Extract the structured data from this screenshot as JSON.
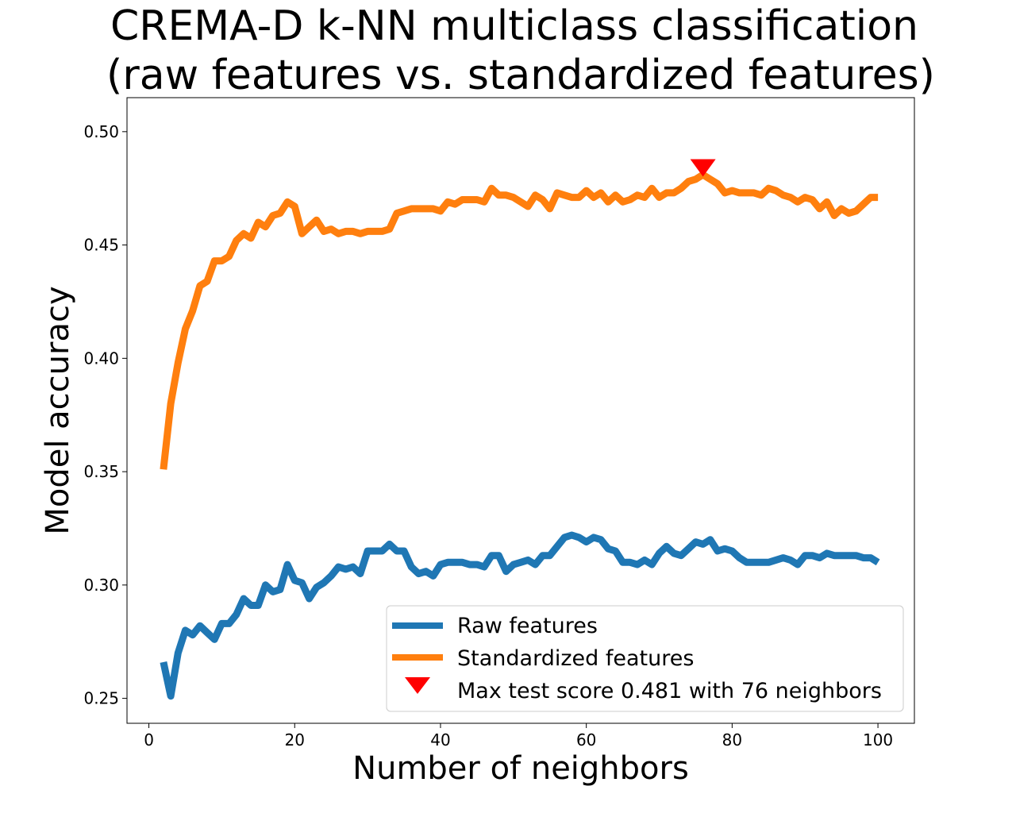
{
  "chart_data": {
    "type": "line",
    "title": "CREMA-D k-NN multiclass classification\n(raw features vs. standardized features)",
    "title_lines": [
      "CREMA-D k-NN multiclass classification",
      "(raw features vs. standardized features)"
    ],
    "xlabel": "Number of neighbors",
    "ylabel": "Model accuracy",
    "xlim": [
      -3,
      105
    ],
    "ylim": [
      0.239,
      0.515
    ],
    "xticks": [
      0,
      20,
      40,
      60,
      80,
      100
    ],
    "xtick_labels": [
      "0",
      "20",
      "40",
      "60",
      "80",
      "100"
    ],
    "yticks": [
      0.25,
      0.3,
      0.35,
      0.4,
      0.45,
      0.5
    ],
    "ytick_labels": [
      "0.25",
      "0.30",
      "0.35",
      "0.40",
      "0.45",
      "0.50"
    ],
    "grid": false,
    "legend_position": "lower-right",
    "series": [
      {
        "name": "Raw features",
        "color": "#1f77b4",
        "x": [
          2,
          3,
          4,
          5,
          6,
          7,
          8,
          9,
          10,
          11,
          12,
          13,
          14,
          15,
          16,
          17,
          18,
          19,
          20,
          21,
          22,
          23,
          24,
          25,
          26,
          27,
          28,
          29,
          30,
          31,
          32,
          33,
          34,
          35,
          36,
          37,
          38,
          39,
          40,
          41,
          42,
          43,
          44,
          45,
          46,
          47,
          48,
          49,
          50,
          51,
          52,
          53,
          54,
          55,
          56,
          57,
          58,
          59,
          60,
          61,
          62,
          63,
          64,
          65,
          66,
          67,
          68,
          69,
          70,
          71,
          72,
          73,
          74,
          75,
          76,
          77,
          78,
          79,
          80,
          81,
          82,
          83,
          84,
          85,
          86,
          87,
          88,
          89,
          90,
          91,
          92,
          93,
          94,
          95,
          96,
          97,
          98,
          99,
          100
        ],
        "y": [
          0.266,
          0.251,
          0.27,
          0.28,
          0.278,
          0.282,
          0.279,
          0.276,
          0.283,
          0.283,
          0.287,
          0.294,
          0.291,
          0.291,
          0.3,
          0.297,
          0.298,
          0.309,
          0.302,
          0.301,
          0.294,
          0.299,
          0.301,
          0.304,
          0.308,
          0.307,
          0.308,
          0.305,
          0.315,
          0.315,
          0.315,
          0.318,
          0.315,
          0.315,
          0.308,
          0.305,
          0.306,
          0.304,
          0.309,
          0.31,
          0.31,
          0.31,
          0.309,
          0.309,
          0.308,
          0.313,
          0.313,
          0.306,
          0.309,
          0.31,
          0.311,
          0.309,
          0.313,
          0.313,
          0.317,
          0.321,
          0.322,
          0.321,
          0.319,
          0.321,
          0.32,
          0.316,
          0.315,
          0.31,
          0.31,
          0.309,
          0.311,
          0.309,
          0.314,
          0.317,
          0.314,
          0.313,
          0.316,
          0.319,
          0.318,
          0.32,
          0.315,
          0.316,
          0.315,
          0.312,
          0.31,
          0.31,
          0.31,
          0.31,
          0.311,
          0.312,
          0.311,
          0.309,
          0.313,
          0.313,
          0.312,
          0.314,
          0.313,
          0.313,
          0.313,
          0.313,
          0.312,
          0.312,
          0.31
        ]
      },
      {
        "name": "Standardized features",
        "color": "#ff7f0e",
        "x": [
          2,
          3,
          4,
          5,
          6,
          7,
          8,
          9,
          10,
          11,
          12,
          13,
          14,
          15,
          16,
          17,
          18,
          19,
          20,
          21,
          22,
          23,
          24,
          25,
          26,
          27,
          28,
          29,
          30,
          31,
          32,
          33,
          34,
          35,
          36,
          37,
          38,
          39,
          40,
          41,
          42,
          43,
          44,
          45,
          46,
          47,
          48,
          49,
          50,
          51,
          52,
          53,
          54,
          55,
          56,
          57,
          58,
          59,
          60,
          61,
          62,
          63,
          64,
          65,
          66,
          67,
          68,
          69,
          70,
          71,
          72,
          73,
          74,
          75,
          76,
          77,
          78,
          79,
          80,
          81,
          82,
          83,
          84,
          85,
          86,
          87,
          88,
          89,
          90,
          91,
          92,
          93,
          94,
          95,
          96,
          97,
          98,
          99,
          100
        ],
        "y": [
          0.351,
          0.38,
          0.398,
          0.413,
          0.421,
          0.432,
          0.434,
          0.443,
          0.443,
          0.445,
          0.452,
          0.455,
          0.453,
          0.46,
          0.458,
          0.463,
          0.464,
          0.469,
          0.467,
          0.455,
          0.458,
          0.461,
          0.456,
          0.457,
          0.455,
          0.456,
          0.456,
          0.455,
          0.456,
          0.456,
          0.456,
          0.457,
          0.464,
          0.465,
          0.466,
          0.466,
          0.466,
          0.466,
          0.465,
          0.469,
          0.468,
          0.47,
          0.47,
          0.47,
          0.469,
          0.475,
          0.472,
          0.472,
          0.471,
          0.469,
          0.467,
          0.472,
          0.47,
          0.466,
          0.473,
          0.472,
          0.471,
          0.471,
          0.474,
          0.471,
          0.473,
          0.469,
          0.472,
          0.469,
          0.47,
          0.472,
          0.471,
          0.475,
          0.471,
          0.473,
          0.473,
          0.475,
          0.478,
          0.479,
          0.481,
          0.479,
          0.477,
          0.473,
          0.474,
          0.473,
          0.473,
          0.473,
          0.472,
          0.475,
          0.474,
          0.472,
          0.471,
          0.469,
          0.471,
          0.47,
          0.466,
          0.469,
          0.463,
          0.466,
          0.464,
          0.465,
          0.468,
          0.471,
          0.471
        ]
      }
    ],
    "annotations": [
      {
        "name": "Max test score 0.481 with 76 neighbors",
        "marker": "down-triangle",
        "color": "#ff0000",
        "x": 76,
        "y": 0.484
      }
    ]
  }
}
